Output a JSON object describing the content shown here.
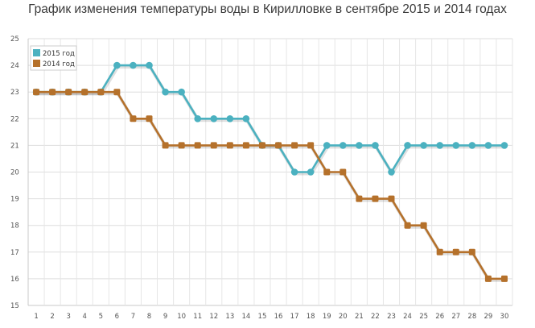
{
  "chart_data": {
    "type": "line",
    "title": "График изменения температуры воды в Кирилловке в сентябре 2015 и 2014 годах",
    "xlabel": "",
    "ylabel": "",
    "x": [
      1,
      2,
      3,
      4,
      5,
      6,
      7,
      8,
      9,
      10,
      11,
      12,
      13,
      14,
      15,
      16,
      17,
      18,
      19,
      20,
      21,
      22,
      23,
      24,
      25,
      26,
      27,
      28,
      29,
      30
    ],
    "ylim": [
      15,
      25
    ],
    "yticks": [
      15,
      16,
      17,
      18,
      19,
      20,
      21,
      22,
      23,
      24,
      25
    ],
    "grid": true,
    "legend_position": "top-left",
    "series": [
      {
        "name": "2015 год",
        "color": "#4bb1c0",
        "values": [
          23,
          23,
          23,
          23,
          23,
          24,
          24,
          24,
          23,
          23,
          22,
          22,
          22,
          22,
          21,
          21,
          20,
          20,
          21,
          21,
          21,
          21,
          20,
          21,
          21,
          21,
          21,
          21,
          21,
          21
        ]
      },
      {
        "name": "2014 год",
        "color": "#b5712b",
        "values": [
          23,
          23,
          23,
          23,
          23,
          23,
          22,
          22,
          21,
          21,
          21,
          21,
          21,
          21,
          21,
          21,
          21,
          21,
          20,
          20,
          19,
          19,
          19,
          18,
          18,
          17,
          17,
          17,
          16,
          16
        ]
      }
    ]
  }
}
